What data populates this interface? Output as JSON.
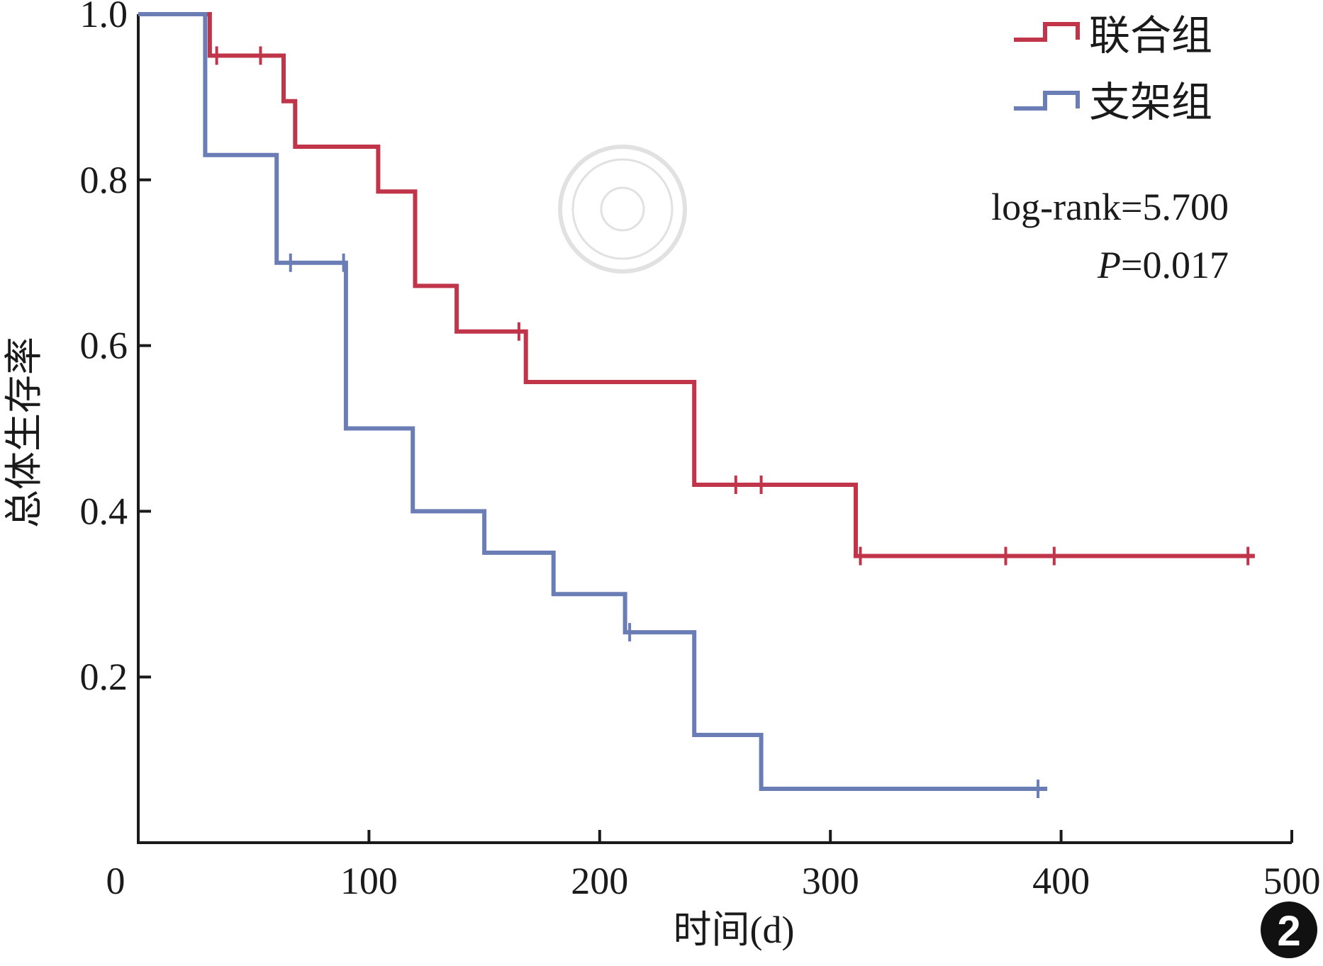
{
  "chart_data": {
    "type": "line",
    "subtype": "kaplan-meier-step",
    "title": "",
    "xlabel": "时间(d)",
    "ylabel": "总体生存率",
    "xlim": [
      0,
      500
    ],
    "ylim": [
      0,
      1.0
    ],
    "x_ticks": [
      "0",
      "100",
      "200",
      "300",
      "400",
      "500"
    ],
    "y_ticks": [
      "0.2",
      "0.4",
      "0.6",
      "0.8",
      "1.0"
    ],
    "grid": false,
    "legend_position": "top-right",
    "series": [
      {
        "name": "联合组",
        "color": "#c0354a",
        "steps": [
          [
            0,
            1.0
          ],
          [
            31,
            0.95
          ],
          [
            63,
            0.895
          ],
          [
            68,
            0.84
          ],
          [
            104,
            0.786
          ],
          [
            120,
            0.672
          ],
          [
            138,
            0.617
          ],
          [
            168,
            0.556
          ],
          [
            241,
            0.432
          ],
          [
            311,
            0.346
          ],
          [
            484,
            0.346
          ]
        ],
        "censored": [
          [
            34,
            0.95
          ],
          [
            53,
            0.95
          ],
          [
            165,
            0.617
          ],
          [
            259,
            0.432
          ],
          [
            270,
            0.432
          ],
          [
            313,
            0.346
          ],
          [
            376,
            0.346
          ],
          [
            397,
            0.346
          ],
          [
            481,
            0.346
          ]
        ]
      },
      {
        "name": "支架组",
        "color": "#6b7db5",
        "steps": [
          [
            0,
            1.0
          ],
          [
            29,
            0.83
          ],
          [
            60,
            0.7
          ],
          [
            90,
            0.5
          ],
          [
            119,
            0.4
          ],
          [
            150,
            0.35
          ],
          [
            180,
            0.3
          ],
          [
            211,
            0.254
          ],
          [
            241,
            0.13
          ],
          [
            270,
            0.065
          ],
          [
            394,
            0.065
          ]
        ],
        "censored": [
          [
            66,
            0.7
          ],
          [
            89,
            0.7
          ],
          [
            213,
            0.254
          ],
          [
            390,
            0.065
          ]
        ]
      }
    ],
    "annotations": {
      "stat_line1": "log-rank=5.700",
      "stat_line2_italic": "P",
      "stat_line2_rest": "=0.017"
    },
    "panel_label": "2"
  }
}
